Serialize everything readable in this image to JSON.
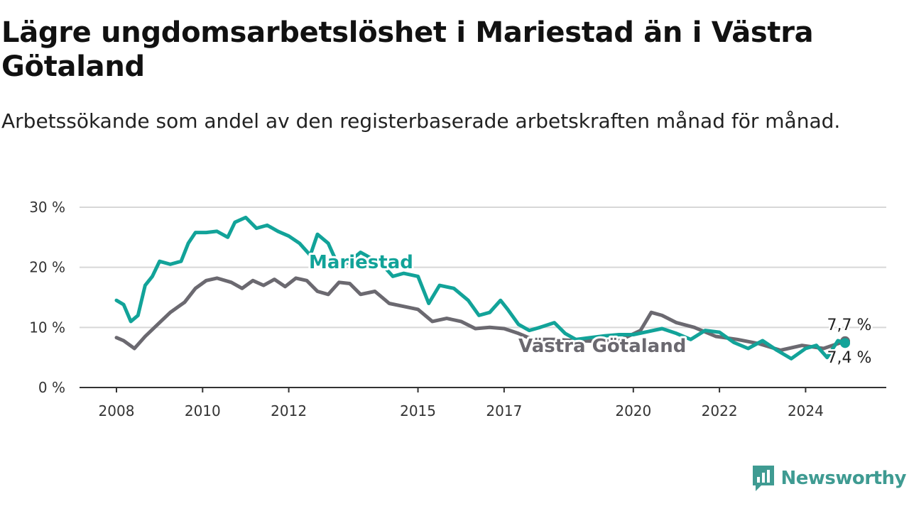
{
  "chart_data": {
    "type": "line",
    "title": "Lägre ungdomsarbetslöshet i Mariestad än i Västra Götaland",
    "subtitle": "Arbetssökande som andel av den registerbaserade arbetskraften månad för månad.",
    "xlabel": "",
    "ylabel": "",
    "x_ticks": [
      "2008",
      "2010",
      "2012",
      "2015",
      "2017",
      "2020",
      "2022",
      "2024"
    ],
    "y_ticks": [
      "0 %",
      "10 %",
      "20 %",
      "30 %"
    ],
    "ylim": [
      0,
      30
    ],
    "xlim": [
      "2008-01",
      "2024-12"
    ],
    "grid": "horizontal",
    "legend": "direct labels",
    "colors": {
      "Mariestad": "#12a399",
      "Västra Götaland": "#6b6970"
    },
    "end_labels": {
      "Mariestad": "7,4 %",
      "Västra Götaland": "7,7 %"
    },
    "series": [
      {
        "name": "Mariestad",
        "points": [
          [
            "2008-01",
            14.5
          ],
          [
            "2008-03",
            13.8
          ],
          [
            "2008-05",
            11.0
          ],
          [
            "2008-07",
            12.0
          ],
          [
            "2008-09",
            17.0
          ],
          [
            "2008-11",
            18.5
          ],
          [
            "2009-01",
            21.0
          ],
          [
            "2009-04",
            20.5
          ],
          [
            "2009-07",
            21.0
          ],
          [
            "2009-09",
            24.0
          ],
          [
            "2009-11",
            25.8
          ],
          [
            "2010-02",
            25.8
          ],
          [
            "2010-05",
            26.0
          ],
          [
            "2010-08",
            25.0
          ],
          [
            "2010-10",
            27.5
          ],
          [
            "2011-01",
            28.3
          ],
          [
            "2011-04",
            26.5
          ],
          [
            "2011-07",
            27.0
          ],
          [
            "2011-10",
            26.0
          ],
          [
            "2012-01",
            25.2
          ],
          [
            "2012-04",
            24.0
          ],
          [
            "2012-07",
            22.0
          ],
          [
            "2012-09",
            25.5
          ],
          [
            "2012-12",
            24.0
          ],
          [
            "2013-03",
            20.0
          ],
          [
            "2013-06",
            21.0
          ],
          [
            "2013-09",
            22.5
          ],
          [
            "2014-03",
            20.5
          ],
          [
            "2014-06",
            18.5
          ],
          [
            "2014-09",
            19.0
          ],
          [
            "2015-01",
            18.5
          ],
          [
            "2015-04",
            14.0
          ],
          [
            "2015-07",
            17.0
          ],
          [
            "2015-11",
            16.5
          ],
          [
            "2016-03",
            14.5
          ],
          [
            "2016-06",
            12.0
          ],
          [
            "2016-09",
            12.5
          ],
          [
            "2016-12",
            14.5
          ],
          [
            "2017-02",
            13.0
          ],
          [
            "2017-05",
            10.5
          ],
          [
            "2017-08",
            9.5
          ],
          [
            "2017-11",
            10.0
          ],
          [
            "2018-03",
            10.8
          ],
          [
            "2018-06",
            9.0
          ],
          [
            "2018-09",
            8.0
          ],
          [
            "2019-01",
            8.3
          ],
          [
            "2019-05",
            8.6
          ],
          [
            "2019-09",
            8.8
          ],
          [
            "2020-01",
            8.8
          ],
          [
            "2020-05",
            9.3
          ],
          [
            "2020-09",
            9.8
          ],
          [
            "2021-01",
            9.0
          ],
          [
            "2021-05",
            8.0
          ],
          [
            "2021-09",
            9.5
          ],
          [
            "2022-01",
            9.2
          ],
          [
            "2022-05",
            7.5
          ],
          [
            "2022-09",
            6.5
          ],
          [
            "2023-01",
            7.8
          ],
          [
            "2023-05",
            6.2
          ],
          [
            "2023-09",
            4.8
          ],
          [
            "2024-01",
            6.5
          ],
          [
            "2024-04",
            7.0
          ],
          [
            "2024-07",
            5.0
          ],
          [
            "2024-10",
            7.8
          ],
          [
            "2024-12",
            7.4
          ]
        ]
      },
      {
        "name": "Västra Götaland",
        "points": [
          [
            "2008-01",
            8.3
          ],
          [
            "2008-03",
            7.8
          ],
          [
            "2008-06",
            6.5
          ],
          [
            "2008-09",
            8.5
          ],
          [
            "2009-01",
            10.8
          ],
          [
            "2009-04",
            12.5
          ],
          [
            "2009-08",
            14.2
          ],
          [
            "2009-11",
            16.5
          ],
          [
            "2010-02",
            17.8
          ],
          [
            "2010-05",
            18.2
          ],
          [
            "2010-09",
            17.5
          ],
          [
            "2010-12",
            16.5
          ],
          [
            "2011-03",
            17.8
          ],
          [
            "2011-06",
            17.0
          ],
          [
            "2011-09",
            18.0
          ],
          [
            "2011-12",
            16.8
          ],
          [
            "2012-03",
            18.2
          ],
          [
            "2012-06",
            17.8
          ],
          [
            "2012-09",
            16.0
          ],
          [
            "2012-12",
            15.5
          ],
          [
            "2013-03",
            17.5
          ],
          [
            "2013-06",
            17.3
          ],
          [
            "2013-09",
            15.5
          ],
          [
            "2014-01",
            16.0
          ],
          [
            "2014-05",
            14.0
          ],
          [
            "2014-09",
            13.5
          ],
          [
            "2015-01",
            13.0
          ],
          [
            "2015-05",
            11.0
          ],
          [
            "2015-09",
            11.5
          ],
          [
            "2016-01",
            11.0
          ],
          [
            "2016-05",
            9.8
          ],
          [
            "2016-09",
            10.0
          ],
          [
            "2017-01",
            9.8
          ],
          [
            "2017-05",
            9.0
          ],
          [
            "2017-09",
            8.0
          ],
          [
            "2018-03",
            8.0
          ],
          [
            "2018-09",
            7.8
          ],
          [
            "2019-03",
            7.7
          ],
          [
            "2019-09",
            7.8
          ],
          [
            "2020-03",
            9.5
          ],
          [
            "2020-06",
            12.5
          ],
          [
            "2020-09",
            12.0
          ],
          [
            "2021-01",
            10.8
          ],
          [
            "2021-06",
            10.0
          ],
          [
            "2021-12",
            8.5
          ],
          [
            "2022-06",
            8.0
          ],
          [
            "2022-12",
            7.3
          ],
          [
            "2023-06",
            6.2
          ],
          [
            "2023-12",
            7.0
          ],
          [
            "2024-06",
            6.5
          ],
          [
            "2024-12",
            7.7
          ]
        ]
      }
    ]
  },
  "branding": {
    "logo_text": "Newsworthy"
  }
}
